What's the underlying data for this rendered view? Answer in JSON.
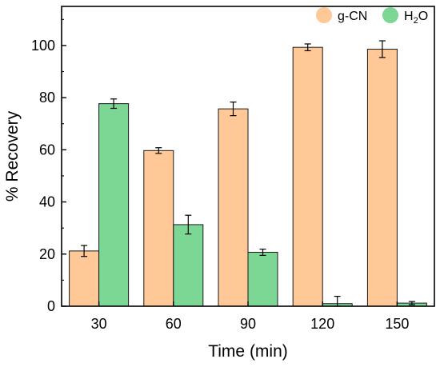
{
  "chart_data": {
    "type": "bar",
    "categories": [
      "30",
      "60",
      "90",
      "120",
      "150"
    ],
    "series": [
      {
        "name": "g-CN",
        "color": "#FFC896",
        "values": [
          21.2,
          59.7,
          75.7,
          99.3,
          98.6
        ],
        "errors": [
          2.1,
          1.1,
          2.6,
          1.3,
          3.2
        ]
      },
      {
        "name": "H2O",
        "name_parts": [
          "H",
          "2",
          "O"
        ],
        "color": "#7CD694",
        "values": [
          77.7,
          31.3,
          20.7,
          1.0,
          1.2
        ],
        "errors": [
          1.8,
          3.6,
          1.2,
          2.8,
          0.6
        ]
      }
    ],
    "xlabel": "Time (min)",
    "ylabel": "% Recovery",
    "ylim": [
      0,
      115
    ],
    "yticks": [
      0,
      20,
      40,
      60,
      80,
      100
    ],
    "grid": false,
    "legend_position": "top-right"
  }
}
